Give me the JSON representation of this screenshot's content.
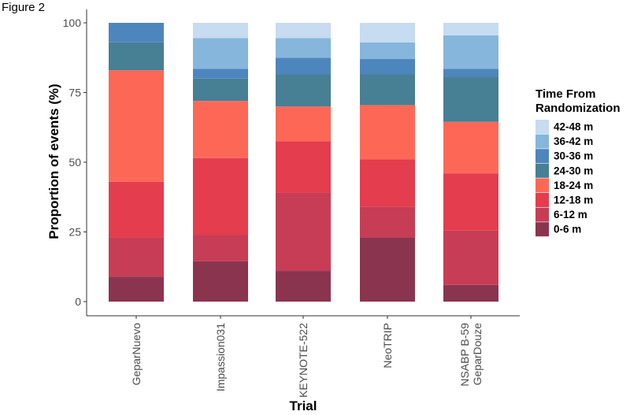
{
  "figure_label": "Figure 2",
  "chart_data": {
    "type": "bar",
    "stacked": true,
    "orientation": "vertical",
    "xlabel": "Trial",
    "ylabel": "Proportion of events (%)",
    "ylim": [
      0,
      100
    ],
    "yticks": [
      0,
      25,
      50,
      75,
      100
    ],
    "grid": false,
    "legend_position": "right",
    "legend_title": [
      "Time From",
      "Randomization"
    ],
    "categories": [
      [
        "GeparNuevo"
      ],
      [
        "Impassion031"
      ],
      [
        "KEYNOTE-522"
      ],
      [
        "NeoTRIP"
      ],
      [
        "NSABP B-59",
        "GeparDouze"
      ]
    ],
    "series": [
      {
        "name": "0-6 m",
        "color": "#8b3450",
        "values": [
          9,
          14.5,
          11,
          23,
          6
        ]
      },
      {
        "name": "6-12 m",
        "color": "#c73d55",
        "values": [
          14,
          9.5,
          28,
          11,
          19.5
        ]
      },
      {
        "name": "12-18 m",
        "color": "#e33d4e",
        "values": [
          20,
          27.5,
          18.5,
          17,
          20.5
        ]
      },
      {
        "name": "18-24 m",
        "color": "#fd6856",
        "values": [
          40,
          20.5,
          12.5,
          19.5,
          18.5
        ]
      },
      {
        "name": "24-30 m",
        "color": "#477f95",
        "values": [
          10,
          8,
          11.5,
          11,
          16
        ]
      },
      {
        "name": "30-36 m",
        "color": "#4d86bd",
        "values": [
          7,
          3.5,
          6,
          5.5,
          3
        ]
      },
      {
        "name": "36-42 m",
        "color": "#86b6dc",
        "values": [
          0,
          11,
          7,
          6,
          12
        ]
      },
      {
        "name": "42-48 m",
        "color": "#c7dbf1",
        "values": [
          0,
          5.5,
          5.5,
          7,
          4.5
        ]
      }
    ],
    "legend_order": [
      "42-48 m",
      "36-42 m",
      "30-36 m",
      "24-30 m",
      "18-24 m",
      "12-18 m",
      "6-12 m",
      "0-6 m"
    ]
  }
}
